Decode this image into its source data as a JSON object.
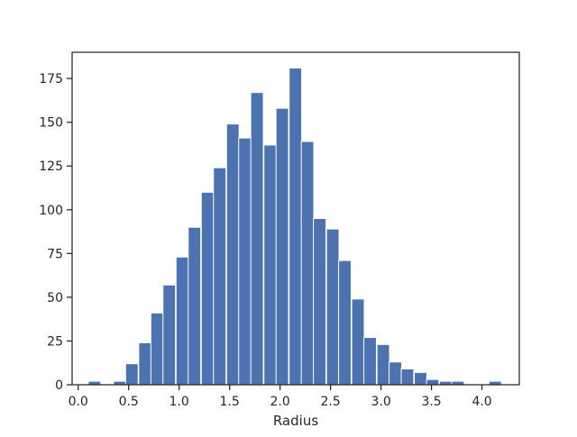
{
  "chart_data": {
    "type": "bar",
    "xlabel": "Radius",
    "ylabel": "",
    "xlim": [
      -0.06,
      4.37
    ],
    "ylim": [
      0,
      190
    ],
    "grid": false,
    "bar_color": "#4c72b0",
    "bin_width": 0.1239,
    "bins": [
      {
        "left": 0.0,
        "count": 0
      },
      {
        "left": 0.1,
        "count": 2
      },
      {
        "left": 0.22,
        "count": 0
      },
      {
        "left": 0.35,
        "count": 2
      },
      {
        "left": 0.47,
        "count": 12
      },
      {
        "left": 0.6,
        "count": 24
      },
      {
        "left": 0.72,
        "count": 41
      },
      {
        "left": 0.84,
        "count": 57
      },
      {
        "left": 0.97,
        "count": 73
      },
      {
        "left": 1.09,
        "count": 90
      },
      {
        "left": 1.22,
        "count": 110
      },
      {
        "left": 1.34,
        "count": 124
      },
      {
        "left": 1.47,
        "count": 149
      },
      {
        "left": 1.59,
        "count": 141
      },
      {
        "left": 1.71,
        "count": 167
      },
      {
        "left": 1.84,
        "count": 137
      },
      {
        "left": 1.96,
        "count": 158
      },
      {
        "left": 2.09,
        "count": 181
      },
      {
        "left": 2.21,
        "count": 139
      },
      {
        "left": 2.33,
        "count": 95
      },
      {
        "left": 2.46,
        "count": 89
      },
      {
        "left": 2.58,
        "count": 71
      },
      {
        "left": 2.71,
        "count": 49
      },
      {
        "left": 2.83,
        "count": 27
      },
      {
        "left": 2.96,
        "count": 23
      },
      {
        "left": 3.08,
        "count": 13
      },
      {
        "left": 3.2,
        "count": 9
      },
      {
        "left": 3.33,
        "count": 7
      },
      {
        "left": 3.45,
        "count": 3
      },
      {
        "left": 3.58,
        "count": 2
      },
      {
        "left": 3.7,
        "count": 2
      },
      {
        "left": 3.83,
        "count": 0
      },
      {
        "left": 3.95,
        "count": 0
      },
      {
        "left": 4.07,
        "count": 2
      }
    ],
    "x_ticks": [
      {
        "value": 0.0,
        "label": "0.0"
      },
      {
        "value": 0.5,
        "label": "0.5"
      },
      {
        "value": 1.0,
        "label": "1.0"
      },
      {
        "value": 1.5,
        "label": "1.5"
      },
      {
        "value": 2.0,
        "label": "2.0"
      },
      {
        "value": 2.5,
        "label": "2.5"
      },
      {
        "value": 3.0,
        "label": "3.0"
      },
      {
        "value": 3.5,
        "label": "3.5"
      },
      {
        "value": 4.0,
        "label": "4.0"
      }
    ],
    "y_ticks": [
      {
        "value": 0,
        "label": "0"
      },
      {
        "value": 25,
        "label": "25"
      },
      {
        "value": 50,
        "label": "50"
      },
      {
        "value": 75,
        "label": "75"
      },
      {
        "value": 100,
        "label": "100"
      },
      {
        "value": 125,
        "label": "125"
      },
      {
        "value": 150,
        "label": "150"
      },
      {
        "value": 175,
        "label": "175"
      }
    ]
  }
}
